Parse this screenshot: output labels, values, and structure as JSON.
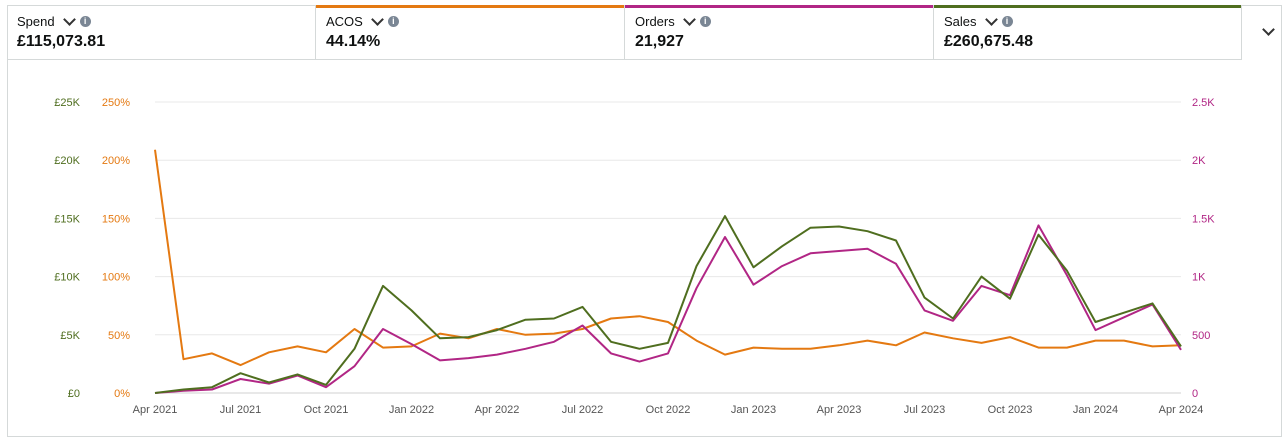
{
  "metrics": [
    {
      "label": "Spend",
      "value": "£115,073.81",
      "color": "",
      "icon_dropdown": "chevron-down-icon",
      "icon_info": "info-icon"
    },
    {
      "label": "ACOS",
      "value": "44.14%",
      "color": "#e47911",
      "icon_dropdown": "chevron-down-icon",
      "icon_info": "info-icon"
    },
    {
      "label": "Orders",
      "value": "21,927",
      "color": "#b12685",
      "icon_dropdown": "chevron-down-icon",
      "icon_info": "info-icon"
    },
    {
      "label": "Sales",
      "value": "£260,675.48",
      "color": "#4f6e1f",
      "icon_dropdown": "chevron-down-icon",
      "icon_info": "info-icon"
    }
  ],
  "chart_data": {
    "type": "line",
    "x": [
      "Apr 2021",
      "May 2021",
      "Jun 2021",
      "Jul 2021",
      "Aug 2021",
      "Sep 2021",
      "Oct 2021",
      "Nov 2021",
      "Dec 2021",
      "Jan 2022",
      "Feb 2022",
      "Mar 2022",
      "Apr 2022",
      "May 2022",
      "Jun 2022",
      "Jul 2022",
      "Aug 2022",
      "Sep 2022",
      "Oct 2022",
      "Nov 2022",
      "Dec 2022",
      "Jan 2023",
      "Feb 2023",
      "Mar 2023",
      "Apr 2023",
      "May 2023",
      "Jun 2023",
      "Jul 2023",
      "Aug 2023",
      "Sep 2023",
      "Oct 2023",
      "Nov 2023",
      "Dec 2023",
      "Jan 2024",
      "Feb 2024",
      "Mar 2024",
      "Apr 2024"
    ],
    "x_tick_labels": [
      "Apr 2021",
      "Jul 2021",
      "Oct 2021",
      "Jan 2022",
      "Apr 2022",
      "Jul 2022",
      "Oct 2022",
      "Jan 2023",
      "Apr 2023",
      "Jul 2023",
      "Oct 2023",
      "Jan 2024",
      "Apr 2024"
    ],
    "left_axis_sales": {
      "ticks": [
        "£0",
        "£5K",
        "£10K",
        "£15K",
        "£20K",
        "£25K"
      ],
      "range": [
        0,
        25000
      ],
      "color": "#4f6e1f"
    },
    "left_axis_acos": {
      "ticks": [
        "0%",
        "50%",
        "100%",
        "150%",
        "200%",
        "250%"
      ],
      "range": [
        0,
        250
      ],
      "color": "#e47911"
    },
    "right_axis_orders": {
      "ticks": [
        "0",
        "500",
        "1K",
        "1.5K",
        "2K",
        "2.5K"
      ],
      "range": [
        0,
        2500
      ],
      "color": "#b12685"
    },
    "grid": true,
    "series": [
      {
        "name": "ACOS",
        "axis": "acos",
        "color": "#e47911",
        "values": [
          209,
          29,
          34,
          24,
          35,
          40,
          35,
          55,
          39,
          40,
          51,
          47,
          55,
          50,
          51,
          55,
          64,
          66,
          61,
          45,
          33,
          39,
          38,
          38,
          41,
          45,
          41,
          52,
          47,
          43,
          48,
          39,
          39,
          45,
          45,
          40,
          41
        ]
      },
      {
        "name": "Orders",
        "axis": "orders",
        "color": "#b12685",
        "values": [
          0,
          20,
          30,
          120,
          80,
          150,
          50,
          230,
          550,
          420,
          280,
          300,
          330,
          380,
          440,
          580,
          340,
          270,
          340,
          900,
          1340,
          930,
          1090,
          1200,
          1220,
          1240,
          1110,
          710,
          620,
          920,
          840,
          1440,
          1010,
          540,
          650,
          760,
          370
        ]
      },
      {
        "name": "Sales",
        "axis": "sales",
        "color": "#4f6e1f",
        "values": [
          0,
          300,
          500,
          1700,
          900,
          1600,
          700,
          3800,
          9200,
          7100,
          4700,
          4800,
          5400,
          6300,
          6400,
          7400,
          4400,
          3800,
          4300,
          10900,
          15200,
          10800,
          12600,
          14200,
          14300,
          13900,
          13100,
          8200,
          6400,
          10000,
          8100,
          13600,
          10500,
          6100,
          6900,
          7700,
          4000
        ]
      }
    ]
  }
}
